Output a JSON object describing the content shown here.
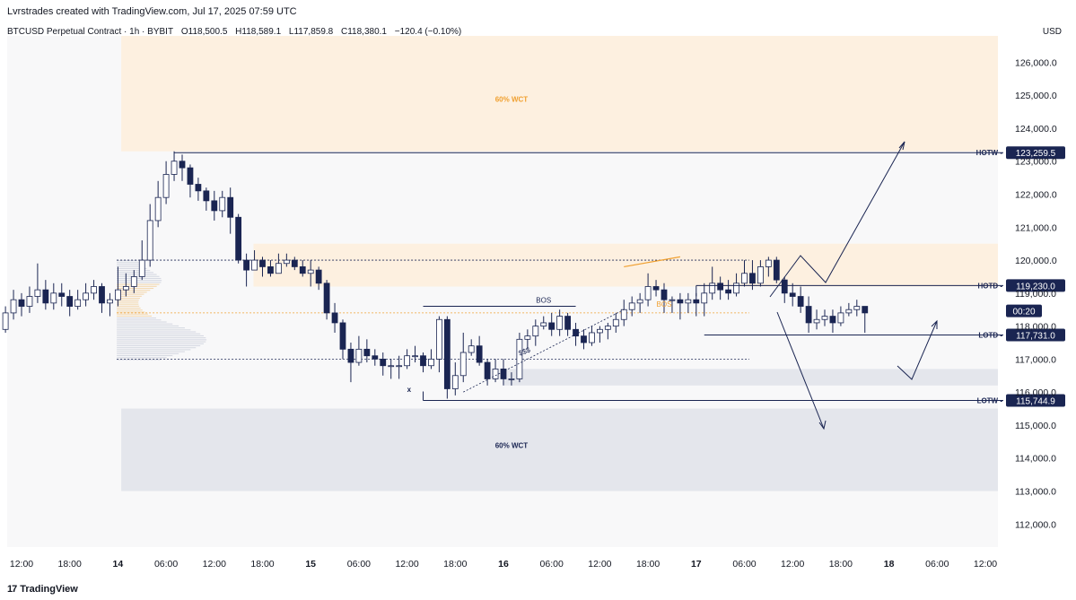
{
  "header": {
    "credit": "Lvrstrades created with TradingView.com, Jul 17, 2025 07:59 UTC",
    "symbol": "BTCUSD Perpetual Contract · 1h · BYBIT",
    "open": "O118,500.5",
    "high": "H118,589.1",
    "low": "L117,859.8",
    "close": "C118,380.1",
    "change": "−120.4 (−0.10%)",
    "currency": "USD"
  },
  "footer": {
    "logo_mark": "17",
    "logo_text": "TradingView"
  },
  "colors": {
    "bull_fill": "#ffffff",
    "bear_fill": "#1a2552",
    "candle_outline": "#1a2552",
    "orange_zone": "#fdf0e0",
    "gray_zone": "#e4e6ec",
    "level_line": "#1a2552",
    "accent_orange": "#f0a030"
  },
  "chart_data": {
    "type": "candlestick",
    "ylim": [
      111300,
      126800
    ],
    "x_tick_labels": [
      "12:00",
      "18:00",
      "14",
      "06:00",
      "12:00",
      "18:00",
      "15",
      "06:00",
      "12:00",
      "18:00",
      "16",
      "06:00",
      "12:00",
      "18:00",
      "17",
      "06:00",
      "12:00",
      "18:00",
      "18",
      "06:00",
      "12:00"
    ],
    "y_tick_labels": [
      "126,000.0",
      "125,000.0",
      "124,000.0",
      "123,000.0",
      "122,000.0",
      "121,000.0",
      "120,000.0",
      "119,000.0",
      "118,000.0",
      "117,000.0",
      "116,000.0",
      "115,000.0",
      "114,000.0",
      "113,000.0",
      "112,000.0"
    ],
    "y_tick_values": [
      126000,
      125000,
      124000,
      123000,
      122000,
      121000,
      120000,
      119000,
      118000,
      117000,
      116000,
      115000,
      114000,
      113000,
      112000
    ],
    "candles": [
      [
        117900,
        118400,
        118600,
        117800
      ],
      [
        118400,
        118800,
        119100,
        118200
      ],
      [
        118800,
        118600,
        119000,
        118300
      ],
      [
        118600,
        118900,
        119200,
        118400
      ],
      [
        118900,
        119100,
        119900,
        118700
      ],
      [
        119100,
        118700,
        119400,
        118500
      ],
      [
        118700,
        119000,
        119300,
        118500
      ],
      [
        119000,
        118900,
        119300,
        118600
      ],
      [
        118900,
        118600,
        119100,
        118300
      ],
      [
        118600,
        118800,
        119100,
        118500
      ],
      [
        118800,
        119000,
        119300,
        118600
      ],
      [
        119000,
        119200,
        119400,
        118800
      ],
      [
        119200,
        118700,
        119300,
        118400
      ],
      [
        118700,
        118800,
        119000,
        118300
      ],
      [
        118800,
        119100,
        119800,
        118600
      ],
      [
        119100,
        119200,
        119600,
        118900
      ],
      [
        119200,
        119500,
        119700,
        119000
      ],
      [
        119500,
        120000,
        120600,
        119400
      ],
      [
        120000,
        121200,
        121700,
        119800
      ],
      [
        121200,
        121900,
        122400,
        121000
      ],
      [
        121900,
        122600,
        123000,
        121700
      ],
      [
        122600,
        123000,
        123300,
        122400
      ],
      [
        123000,
        122800,
        123200,
        122400
      ],
      [
        122800,
        122300,
        122900,
        121900
      ],
      [
        122300,
        122100,
        122500,
        121800
      ],
      [
        122100,
        121800,
        122200,
        121500
      ],
      [
        121800,
        121500,
        122100,
        121200
      ],
      [
        121500,
        121900,
        122100,
        121300
      ],
      [
        121900,
        121300,
        122200,
        120800
      ],
      [
        121300,
        120000,
        121400,
        119900
      ],
      [
        120000,
        119700,
        120200,
        119200
      ],
      [
        119700,
        120000,
        120300,
        119700
      ],
      [
        120000,
        119800,
        120100,
        119500
      ],
      [
        119800,
        119600,
        120000,
        119500
      ],
      [
        119600,
        119900,
        120200,
        119600
      ],
      [
        119900,
        120000,
        120200,
        119800
      ],
      [
        120000,
        119800,
        120100,
        119700
      ],
      [
        119800,
        119600,
        120000,
        119500
      ],
      [
        119600,
        119700,
        120000,
        119200
      ],
      [
        119700,
        119300,
        119800,
        119100
      ],
      [
        119300,
        118400,
        119400,
        118200
      ],
      [
        118400,
        118100,
        118700,
        117800
      ],
      [
        118100,
        117300,
        118200,
        117000
      ],
      [
        117300,
        116900,
        117500,
        116300
      ],
      [
        116900,
        117300,
        117700,
        116800
      ],
      [
        117300,
        117100,
        117600,
        116900
      ],
      [
        117100,
        117000,
        117300,
        116800
      ],
      [
        117000,
        116800,
        117200,
        116500
      ],
      [
        116800,
        116800,
        117000,
        116400
      ],
      [
        116800,
        116800,
        117100,
        116400
      ],
      [
        116800,
        117100,
        117300,
        116700
      ],
      [
        117100,
        117100,
        117400,
        116900
      ],
      [
        117100,
        116800,
        117200,
        116600
      ],
      [
        116800,
        117000,
        117300,
        116700
      ],
      [
        117000,
        118200,
        118300,
        116600
      ],
      [
        118200,
        116100,
        118300,
        115800
      ],
      [
        116100,
        116500,
        116900,
        115900
      ],
      [
        116500,
        117200,
        117800,
        116300
      ],
      [
        117200,
        117400,
        117600,
        117100
      ],
      [
        117400,
        116900,
        117700,
        116800
      ],
      [
        116900,
        116400,
        117000,
        116200
      ],
      [
        116400,
        116700,
        117000,
        116300
      ],
      [
        116700,
        116400,
        117000,
        116200
      ],
      [
        116400,
        116400,
        116600,
        116200
      ],
      [
        116400,
        117600,
        117800,
        116300
      ],
      [
        117600,
        117700,
        117900,
        117300
      ],
      [
        117700,
        118000,
        118200,
        117400
      ],
      [
        118000,
        118100,
        118300,
        117900
      ],
      [
        118100,
        117900,
        118400,
        117700
      ],
      [
        117900,
        118300,
        118500,
        117700
      ],
      [
        118300,
        117900,
        118400,
        117700
      ],
      [
        117900,
        117700,
        118100,
        117400
      ],
      [
        117700,
        117500,
        117900,
        117300
      ],
      [
        117500,
        117800,
        118000,
        117400
      ],
      [
        117800,
        117900,
        118000,
        117500
      ],
      [
        117900,
        118000,
        118100,
        117600
      ],
      [
        118000,
        118200,
        118400,
        117800
      ],
      [
        118200,
        118500,
        118800,
        118000
      ],
      [
        118500,
        118700,
        118900,
        118300
      ],
      [
        118700,
        118800,
        119000,
        118400
      ],
      [
        118800,
        119200,
        119600,
        118600
      ],
      [
        119200,
        119100,
        119400,
        118900
      ],
      [
        119100,
        118800,
        119300,
        118400
      ],
      [
        118800,
        118800,
        118900,
        118400
      ],
      [
        118800,
        118700,
        119000,
        118200
      ],
      [
        118700,
        118800,
        119000,
        118400
      ],
      [
        118800,
        118700,
        119000,
        118300
      ],
      [
        118700,
        119000,
        119300,
        118300
      ],
      [
        119000,
        119300,
        119800,
        118800
      ],
      [
        119300,
        119100,
        119500,
        118800
      ],
      [
        119100,
        119000,
        119400,
        118800
      ],
      [
        119000,
        119300,
        119600,
        118900
      ],
      [
        119300,
        119600,
        120000,
        119200
      ],
      [
        119600,
        119300,
        120000,
        119100
      ],
      [
        119300,
        119800,
        120000,
        119200
      ],
      [
        119800,
        120000,
        120100,
        119500
      ],
      [
        120000,
        119400,
        120100,
        119300
      ],
      [
        119400,
        119000,
        119500,
        118700
      ],
      [
        119000,
        118900,
        119300,
        118600
      ],
      [
        118900,
        118600,
        119200,
        118400
      ],
      [
        118600,
        118100,
        118900,
        117800
      ],
      [
        118100,
        118200,
        118500,
        117900
      ],
      [
        118200,
        118300,
        118500,
        118000
      ],
      [
        118300,
        118100,
        118500,
        117800
      ],
      [
        118100,
        118400,
        118600,
        118000
      ],
      [
        118400,
        118500,
        118700,
        118300
      ],
      [
        118500,
        118600,
        118800,
        118300
      ],
      [
        118600,
        118400,
        118600,
        117800
      ]
    ],
    "orange_zones": [
      {
        "label": "60% WCT",
        "y0": 123300,
        "y1": 126800,
        "x0": "14 06:00",
        "x1": "right"
      },
      {
        "label": "",
        "y0": 119200,
        "y1": 120500,
        "x0": "14 18:00",
        "x1": "right"
      }
    ],
    "gray_zones": [
      {
        "label": "60% WCT",
        "y0": 113000,
        "y1": 115500,
        "x0": "14 06:00",
        "x1": "right"
      },
      {
        "label": "",
        "y0": 116200,
        "y1": 116700,
        "x0": "16 00:00",
        "x1": "right"
      }
    ],
    "levels": [
      {
        "label": "HOTW",
        "value": "123,259.5",
        "price": 123259.5
      },
      {
        "label": "HOTD",
        "value": "119,230.0",
        "price": 119230
      },
      {
        "label": "LOTD",
        "value": "117,731.0",
        "price": 117731
      },
      {
        "label": "LOTW",
        "value": "115,744.9",
        "price": 115744.9
      }
    ],
    "countdown": "00:20",
    "current_price": 118380,
    "annotations": [
      {
        "text": "60% WCT",
        "price": 124800,
        "color": "orange"
      },
      {
        "text": "60% WCT",
        "price": 114300,
        "color": "navy"
      },
      {
        "text": "BOS",
        "price": 118700,
        "color": "navy"
      },
      {
        "text": "BOS",
        "price": 118700,
        "color": "orange"
      },
      {
        "text": "$$$",
        "price": 117100,
        "color": "navy"
      },
      {
        "text": "x",
        "price": 116300,
        "color": "navy"
      }
    ]
  }
}
